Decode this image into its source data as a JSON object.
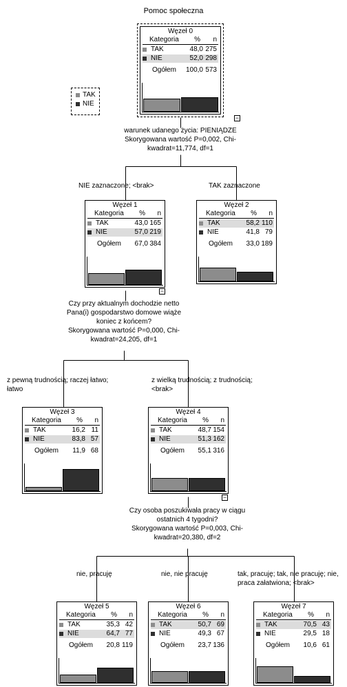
{
  "title": "Pomoc społeczna",
  "legend": [
    {
      "label": "TAK",
      "color": "#8c8c8c"
    },
    {
      "label": "NIE",
      "color": "#2f2f2f"
    }
  ],
  "table_headers": {
    "category": "Kategoria",
    "percent": "%",
    "n": "n"
  },
  "total_label": "Ogółem",
  "nodes": [
    {
      "title": "Węzeł 0",
      "tak_pct": "48,0",
      "tak_n": "275",
      "nie_pct": "52,0",
      "nie_n": "298",
      "total_pct": "100,0",
      "total_n": "573",
      "highlight": "nie",
      "tak_value": 48.0,
      "nie_value": 52.0
    },
    {
      "title": "Węzeł 1",
      "tak_pct": "43,0",
      "tak_n": "165",
      "nie_pct": "57,0",
      "nie_n": "219",
      "total_pct": "67,0",
      "total_n": "384",
      "highlight": "nie",
      "tak_value": 43.0,
      "nie_value": 57.0
    },
    {
      "title": "Węzeł 2",
      "tak_pct": "58,2",
      "tak_n": "110",
      "nie_pct": "41,8",
      "nie_n": "79",
      "total_pct": "33,0",
      "total_n": "189",
      "highlight": "tak",
      "tak_value": 58.2,
      "nie_value": 41.8
    },
    {
      "title": "Węzeł 3",
      "tak_pct": "16,2",
      "tak_n": "11",
      "nie_pct": "83,8",
      "nie_n": "57",
      "total_pct": "11,9",
      "total_n": "68",
      "highlight": "nie",
      "tak_value": 16.2,
      "nie_value": 83.8
    },
    {
      "title": "Węzeł 4",
      "tak_pct": "48,7",
      "tak_n": "154",
      "nie_pct": "51,3",
      "nie_n": "162",
      "total_pct": "55,1",
      "total_n": "316",
      "highlight": "nie",
      "tak_value": 48.7,
      "nie_value": 51.3
    },
    {
      "title": "Węzeł 5",
      "tak_pct": "35,3",
      "tak_n": "42",
      "nie_pct": "64,7",
      "nie_n": "77",
      "total_pct": "20,8",
      "total_n": "119",
      "highlight": "nie",
      "tak_value": 35.3,
      "nie_value": 64.7
    },
    {
      "title": "Węzeł 6",
      "tak_pct": "50,7",
      "tak_n": "69",
      "nie_pct": "49,3",
      "nie_n": "67",
      "total_pct": "23,7",
      "total_n": "136",
      "highlight": "tak",
      "tak_value": 50.7,
      "nie_value": 49.3
    },
    {
      "title": "Węzeł 7",
      "tak_pct": "70,5",
      "tak_n": "43",
      "nie_pct": "29,5",
      "nie_n": "18",
      "total_pct": "10,6",
      "total_n": "61",
      "highlight": "tak",
      "tak_value": 70.5,
      "nie_value": 29.5
    }
  ],
  "splits": [
    {
      "lines": [
        "warunek udanego życia: PIENIĄDZE",
        "Skorygowana wartość P=0,002, Chi-",
        "kwadrat=11,774, df=1"
      ]
    },
    {
      "lines": [
        "Czy przy aktualnym dochodzie netto",
        "Pana(i) gospodarstwo domowe wiąże",
        "koniec z końcem?",
        "Skorygowana wartość P=0,000, Chi-",
        "kwadrat=24,205, df=1"
      ]
    },
    {
      "lines": [
        "Czy osoba poszukiwała pracy w ciągu",
        "ostatnich 4 tygodni?",
        "Skorygowana wartość P=0,003, Chi-",
        "kwadrat=20,380, df=2"
      ]
    }
  ],
  "branches": [
    {
      "lines": [
        "NIE zaznaczone; <brak>"
      ]
    },
    {
      "lines": [
        "TAK zaznaczone"
      ]
    },
    {
      "lines": [
        "z pewną trudnością; raczej łatwo;",
        "łatwo"
      ]
    },
    {
      "lines": [
        "z wielką trudnością; z trudnością;",
        "<brak>"
      ]
    },
    {
      "lines": [
        "nie, pracuję"
      ]
    },
    {
      "lines": [
        "nie, nie pracuję"
      ]
    },
    {
      "lines": [
        "tak, pracuję; tak, nie pracuję; nie,",
        "praca załatwiona; <brak>"
      ]
    }
  ],
  "collapse_symbol": "−"
}
